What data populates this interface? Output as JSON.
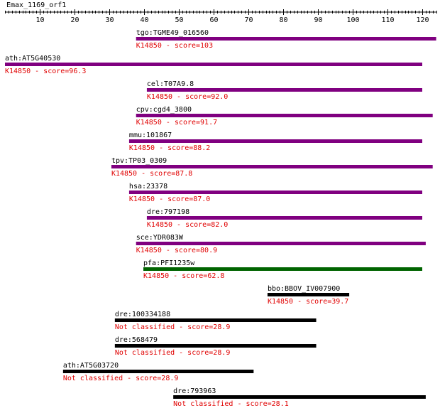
{
  "query": {
    "name": "Emax_1169_orf1",
    "scale_max": 124
  },
  "axis": {
    "ticks": [
      {
        "value": 10,
        "label": "10"
      },
      {
        "value": 20,
        "label": "20"
      },
      {
        "value": 30,
        "label": "30"
      },
      {
        "value": 40,
        "label": "40"
      },
      {
        "value": 50,
        "label": "50"
      },
      {
        "value": 60,
        "label": "60"
      },
      {
        "value": 70,
        "label": "70"
      },
      {
        "value": 80,
        "label": "80"
      },
      {
        "value": 90,
        "label": "90"
      },
      {
        "value": 100,
        "label": "100"
      },
      {
        "value": 110,
        "label": "110"
      },
      {
        "value": 120,
        "label": "120"
      }
    ]
  },
  "colors": {
    "purple": "#800080",
    "green": "#006400",
    "black": "#000000",
    "red": "#e00000"
  },
  "hits": [
    {
      "gene": "tgo:TGME49_016560",
      "annotation": "K14850 - score=103",
      "start": 37.7,
      "end": 124,
      "color": "purple"
    },
    {
      "gene": "ath:AT5G40530",
      "annotation": "K14850 - score=96.3",
      "start": 0,
      "end": 120,
      "color": "purple"
    },
    {
      "gene": "cel:T07A9.8",
      "annotation": "K14850 - score=92.0",
      "start": 40.8,
      "end": 120,
      "color": "purple"
    },
    {
      "gene": "cpv:cgd4_3800",
      "annotation": "K14850 - score=91.7",
      "start": 37.7,
      "end": 123,
      "color": "purple"
    },
    {
      "gene": "mmu:101867",
      "annotation": "K14850 - score=88.2",
      "start": 35.7,
      "end": 120,
      "color": "purple"
    },
    {
      "gene": "tpv:TP03_0309",
      "annotation": "K14850 - score=87.8",
      "start": 30.6,
      "end": 123,
      "color": "purple"
    },
    {
      "gene": "hsa:23378",
      "annotation": "K14850 - score=87.0",
      "start": 35.7,
      "end": 120,
      "color": "purple"
    },
    {
      "gene": "dre:797198",
      "annotation": "K14850 - score=82.0",
      "start": 40.8,
      "end": 120,
      "color": "purple"
    },
    {
      "gene": "sce:YDR083W",
      "annotation": "K14850 - score=80.9",
      "start": 37.7,
      "end": 121,
      "color": "purple"
    },
    {
      "gene": "pfa:PFI1235w",
      "annotation": "K14850 - score=62.8",
      "start": 39.8,
      "end": 120,
      "color": "green"
    },
    {
      "gene": "bbo:BBOV_IV007900",
      "annotation": "K14850 - score=39.7",
      "start": 75.5,
      "end": 99,
      "color": "black"
    },
    {
      "gene": "dre:100334188",
      "annotation": "Not classified - score=28.9",
      "start": 31.6,
      "end": 89.5,
      "color": "black"
    },
    {
      "gene": "dre:568479",
      "annotation": "Not classified - score=28.9",
      "start": 31.6,
      "end": 89.5,
      "color": "black"
    },
    {
      "gene": "ath:AT5G03720",
      "annotation": "Not classified - score=28.9",
      "start": 16.7,
      "end": 71.5,
      "color": "black"
    },
    {
      "gene": "dre:793963",
      "annotation": "Not classified - score=28.1",
      "start": 48.4,
      "end": 121,
      "color": "black"
    }
  ]
}
